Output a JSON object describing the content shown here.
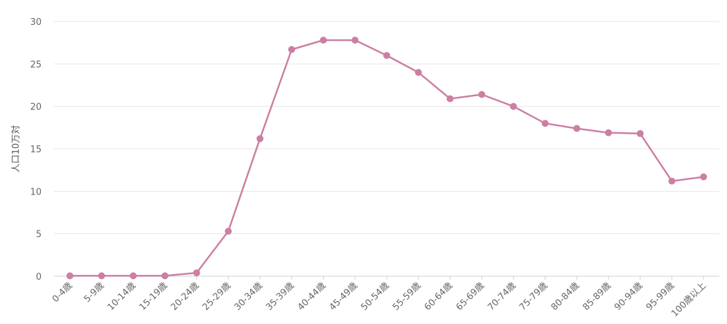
{
  "chart_data": {
    "type": "line",
    "title": "",
    "xlabel": "",
    "ylabel": "人口10万対",
    "ylim": [
      0,
      30
    ],
    "yticks": [
      0,
      5,
      10,
      15,
      20,
      25,
      30
    ],
    "grid": true,
    "legend": "none",
    "categories": [
      "0-4歳",
      "5-9歳",
      "10-14歳",
      "15-19歳",
      "20-24歳",
      "25-29歳",
      "30-34歳",
      "35-39歳",
      "40-44歳",
      "45-49歳",
      "50-54歳",
      "55-59歳",
      "60-64歳",
      "65-69歳",
      "70-74歳",
      "75-79歳",
      "80-84歳",
      "85-89歳",
      "90-94歳",
      "95-99歳",
      "100歳以上"
    ],
    "series": [
      {
        "color": "#cc7fa3",
        "values": [
          0.05,
          0.05,
          0.05,
          0.05,
          0.4,
          5.3,
          16.2,
          26.7,
          27.8,
          27.8,
          26.0,
          24.0,
          20.9,
          21.4,
          20.0,
          18.0,
          17.4,
          16.9,
          16.8,
          11.2,
          11.7
        ]
      }
    ]
  }
}
